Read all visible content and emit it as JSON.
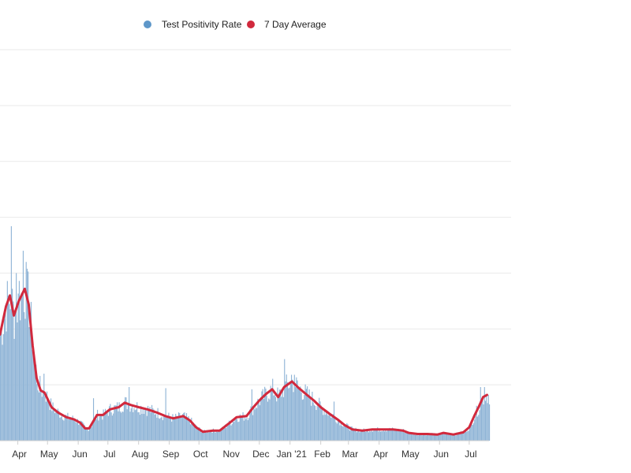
{
  "colors": {
    "bars": "#8fb4d6",
    "legend_bars": "#5e97c9",
    "line": "#d1293d",
    "grid": "#e9e9e9",
    "baseline": "#cfcfcf"
  },
  "legend": [
    {
      "label": "Test Positivity Rate",
      "color": "#5e97c9"
    },
    {
      "label": "7 Day Average",
      "color": "#d1293d"
    }
  ],
  "chart_data": {
    "type": "bar",
    "title": "",
    "xlabel": "",
    "ylabel": "",
    "y_axis_labels_visible": false,
    "ylim": [
      0,
      35
    ],
    "grid": true,
    "legend_position": "top",
    "x_range": [
      "2020-03-14",
      "2021-07-21"
    ],
    "xticks": [
      {
        "label": "Apr",
        "date": "2020-04-01"
      },
      {
        "label": "May",
        "date": "2020-05-01"
      },
      {
        "label": "Jun",
        "date": "2020-06-01"
      },
      {
        "label": "Jul",
        "date": "2020-07-01"
      },
      {
        "label": "Aug",
        "date": "2020-08-01"
      },
      {
        "label": "Sep",
        "date": "2020-09-01"
      },
      {
        "label": "Oct",
        "date": "2020-10-01"
      },
      {
        "label": "Nov",
        "date": "2020-11-01"
      },
      {
        "label": "Dec",
        "date": "2020-12-01"
      },
      {
        "label": "Jan '21",
        "date": "2021-01-01"
      },
      {
        "label": "Feb",
        "date": "2021-02-01"
      },
      {
        "label": "Mar",
        "date": "2021-03-01"
      },
      {
        "label": "Apr",
        "date": "2021-04-01"
      },
      {
        "label": "May",
        "date": "2021-05-01"
      },
      {
        "label": "Jun",
        "date": "2021-06-01"
      },
      {
        "label": "Jul",
        "date": "2021-07-01"
      }
    ],
    "series": [
      {
        "name": "7 Day Average",
        "type": "line",
        "points": [
          [
            "2020-03-14",
            9.5
          ],
          [
            "2020-03-20",
            12.0
          ],
          [
            "2020-03-24",
            13.0
          ],
          [
            "2020-03-28",
            11.2
          ],
          [
            "2020-04-02",
            12.5
          ],
          [
            "2020-04-08",
            13.6
          ],
          [
            "2020-04-12",
            12.2
          ],
          [
            "2020-04-16",
            8.5
          ],
          [
            "2020-04-20",
            5.6
          ],
          [
            "2020-04-24",
            4.5
          ],
          [
            "2020-04-28",
            4.3
          ],
          [
            "2020-05-05",
            3.0
          ],
          [
            "2020-05-12",
            2.5
          ],
          [
            "2020-05-20",
            2.1
          ],
          [
            "2020-05-28",
            1.9
          ],
          [
            "2020-06-03",
            1.6
          ],
          [
            "2020-06-08",
            1.1
          ],
          [
            "2020-06-12",
            1.1
          ],
          [
            "2020-06-20",
            2.3
          ],
          [
            "2020-06-26",
            2.3
          ],
          [
            "2020-07-03",
            2.8
          ],
          [
            "2020-07-12",
            3.0
          ],
          [
            "2020-07-18",
            3.4
          ],
          [
            "2020-07-24",
            3.2
          ],
          [
            "2020-08-01",
            3.0
          ],
          [
            "2020-08-10",
            2.8
          ],
          [
            "2020-08-20",
            2.5
          ],
          [
            "2020-08-28",
            2.2
          ],
          [
            "2020-09-05",
            2.0
          ],
          [
            "2020-09-15",
            2.2
          ],
          [
            "2020-09-22",
            1.8
          ],
          [
            "2020-09-28",
            1.2
          ],
          [
            "2020-10-05",
            0.8
          ],
          [
            "2020-10-15",
            0.9
          ],
          [
            "2020-10-22",
            0.9
          ],
          [
            "2020-11-01",
            1.6
          ],
          [
            "2020-11-08",
            2.1
          ],
          [
            "2020-11-18",
            2.2
          ],
          [
            "2020-11-25",
            3.0
          ],
          [
            "2020-12-01",
            3.6
          ],
          [
            "2020-12-08",
            4.2
          ],
          [
            "2020-12-14",
            4.6
          ],
          [
            "2020-12-20",
            3.9
          ],
          [
            "2020-12-26",
            4.8
          ],
          [
            "2021-01-03",
            5.3
          ],
          [
            "2021-01-10",
            4.7
          ],
          [
            "2021-01-18",
            4.1
          ],
          [
            "2021-01-25",
            3.6
          ],
          [
            "2021-02-01",
            3.0
          ],
          [
            "2021-02-10",
            2.4
          ],
          [
            "2021-02-18",
            1.9
          ],
          [
            "2021-02-25",
            1.4
          ],
          [
            "2021-03-05",
            1.0
          ],
          [
            "2021-03-15",
            0.9
          ],
          [
            "2021-03-25",
            1.0
          ],
          [
            "2021-04-05",
            1.0
          ],
          [
            "2021-04-15",
            1.0
          ],
          [
            "2021-04-25",
            0.9
          ],
          [
            "2021-05-01",
            0.7
          ],
          [
            "2021-05-10",
            0.6
          ],
          [
            "2021-05-20",
            0.6
          ],
          [
            "2021-05-30",
            0.55
          ],
          [
            "2021-06-05",
            0.7
          ],
          [
            "2021-06-15",
            0.55
          ],
          [
            "2021-06-25",
            0.75
          ],
          [
            "2021-07-01",
            1.2
          ],
          [
            "2021-07-06",
            2.2
          ],
          [
            "2021-07-11",
            3.1
          ],
          [
            "2021-07-15",
            3.9
          ],
          [
            "2021-07-19",
            4.1
          ]
        ]
      },
      {
        "name": "Test Positivity Rate",
        "type": "bar",
        "points": [
          [
            "2020-03-25",
            19.2
          ],
          [
            "2020-03-30",
            15.0
          ],
          [
            "2020-04-02",
            14.3
          ],
          [
            "2020-04-06",
            17.0
          ],
          [
            "2020-04-09",
            16.0
          ],
          [
            "2020-04-16",
            7.6
          ],
          [
            "2020-04-21",
            4.5
          ],
          [
            "2020-04-27",
            6.0
          ],
          [
            "2020-06-16",
            3.8
          ],
          [
            "2020-07-22",
            4.8
          ],
          [
            "2020-08-28",
            4.7
          ],
          [
            "2020-11-23",
            4.6
          ],
          [
            "2020-12-26",
            7.3
          ],
          [
            "2021-01-02",
            5.9
          ],
          [
            "2021-01-05",
            5.9
          ],
          [
            "2021-02-14",
            3.5
          ],
          [
            "2021-07-12",
            4.8
          ],
          [
            "2021-07-16",
            4.8
          ]
        ]
      }
    ]
  }
}
